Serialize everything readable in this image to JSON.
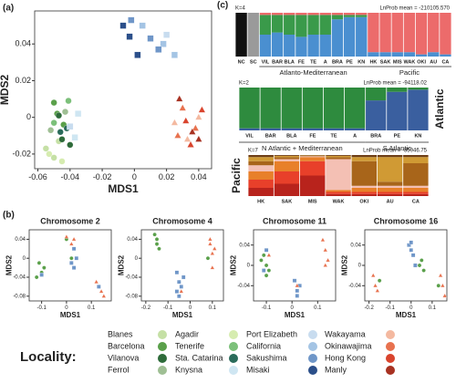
{
  "panel_labels": [
    "(a)",
    "(b)",
    "(c)"
  ],
  "legend_title": "Locality:",
  "chart_data": [
    {
      "type": "scatter",
      "xlabel": "MDS1",
      "ylabel": "MDS2",
      "xlim": [
        -0.062,
        0.048
      ],
      "ylim": [
        -0.028,
        0.058
      ],
      "xticks": [
        -0.06,
        -0.04,
        -0.02,
        0,
        0.02,
        0.04
      ],
      "yticks": [
        -0.02,
        0,
        0.02,
        0.04
      ],
      "series": [
        {
          "name": "Blanes",
          "color": "#c5e0a5",
          "marker": "circle",
          "x": [
            -0.055,
            -0.05,
            -0.047
          ],
          "values": [
            -0.017,
            -0.022,
            -0.013
          ]
        },
        {
          "name": "Barcelona",
          "color": "#5aa04a",
          "marker": "circle",
          "x": [
            -0.048,
            -0.044,
            -0.05
          ],
          "values": [
            0.002,
            -0.004,
            0.008
          ]
        },
        {
          "name": "Vilanova",
          "color": "#2e6b3a",
          "marker": "circle",
          "x": [
            -0.045,
            -0.04,
            -0.047
          ],
          "values": [
            -0.012,
            -0.015,
            0.001
          ]
        },
        {
          "name": "Ferrol",
          "color": "#9fbf94",
          "marker": "circle",
          "x": [
            -0.052,
            -0.043
          ],
          "values": [
            -0.007,
            0.003
          ]
        },
        {
          "name": "Agadir",
          "color": "#d6ecb0",
          "marker": "circle",
          "x": [
            -0.053,
            -0.045
          ],
          "values": [
            -0.02,
            -0.024
          ]
        },
        {
          "name": "Tenerife",
          "color": "#7cc07a",
          "marker": "circle",
          "x": [
            -0.05,
            -0.041
          ],
          "values": [
            -0.003,
            0.009
          ]
        },
        {
          "name": "Sta. Catarina",
          "color": "#2a6b5a",
          "marker": "circle",
          "x": [
            -0.046,
            -0.042
          ],
          "values": [
            -0.008,
            -0.006
          ]
        },
        {
          "name": "Knysna",
          "color": "#cfe6f2",
          "marker": "square",
          "x": [
            -0.037,
            -0.035
          ],
          "values": [
            -0.011,
            0.002
          ]
        },
        {
          "name": "Port Elizabeth",
          "color": "#c8dcef",
          "marker": "square",
          "x": [
            -0.04,
            0.02
          ],
          "values": [
            -0.005,
            0.045
          ]
        },
        {
          "name": "California",
          "color": "#a4c4e4",
          "marker": "square",
          "x": [
            0.005,
            0.018,
            0.025
          ],
          "values": [
            0.05,
            0.04,
            0.034
          ]
        },
        {
          "name": "Sakushima",
          "color": "#6f96c8",
          "marker": "square",
          "x": [
            -0.002,
            0.01,
            0.015
          ],
          "values": [
            0.053,
            0.043,
            0.037
          ]
        },
        {
          "name": "Misaki",
          "color": "#2b4f8a",
          "marker": "square",
          "x": [
            -0.007,
            0.002,
            -0.003
          ],
          "values": [
            0.05,
            0.034,
            0.044
          ]
        },
        {
          "name": "Wakayama",
          "color": "#f4b9a0",
          "marker": "triangle",
          "x": [
            0.025,
            0.04,
            0.033
          ],
          "values": [
            -0.003,
            0.0,
            -0.012
          ]
        },
        {
          "name": "Okinawajima",
          "color": "#e8724f",
          "marker": "triangle",
          "x": [
            0.03,
            0.038,
            0.027
          ],
          "values": [
            0.005,
            -0.006,
            -0.01
          ]
        },
        {
          "name": "Hong Kong",
          "color": "#d9442d",
          "marker": "triangle",
          "x": [
            0.032,
            0.035,
            0.042
          ],
          "values": [
            -0.002,
            -0.015,
            0.004
          ]
        },
        {
          "name": "Manly",
          "color": "#a83222",
          "marker": "triangle",
          "x": [
            0.028,
            0.036,
            0.04
          ],
          "values": [
            0.01,
            -0.008,
            -0.012
          ]
        }
      ]
    },
    {
      "type": "scatter",
      "title": "Chromosome 2",
      "xlabel": "MDS1",
      "ylabel": "MDS2",
      "xlim": [
        -0.15,
        0.18
      ],
      "ylim": [
        -0.09,
        0.06
      ],
      "xticks": [
        -0.1,
        0,
        0.1
      ],
      "yticks": [
        -0.08,
        -0.04,
        0,
        0.04
      ],
      "series": [
        {
          "color": "#5aa04a",
          "marker": "circle",
          "x": [
            -0.11,
            -0.1,
            -0.09,
            -0.12,
            0.0,
            0.02
          ],
          "values": [
            -0.01,
            -0.03,
            -0.02,
            -0.04,
            0.04,
            0.0
          ]
        },
        {
          "color": "#6f96c8",
          "marker": "square",
          "x": [
            0.03,
            0.02,
            0.04,
            0.03,
            -0.1,
            0.13
          ],
          "values": [
            0.02,
            -0.01,
            0.0,
            -0.02,
            -0.035,
            -0.06
          ]
        },
        {
          "color": "#e8724f",
          "marker": "triangle",
          "x": [
            0.0,
            0.02,
            0.03,
            0.12,
            0.14,
            0.15
          ],
          "values": [
            0.045,
            0.03,
            0.04,
            -0.05,
            -0.07,
            -0.08
          ]
        }
      ]
    },
    {
      "type": "scatter",
      "title": "Chromosome 4",
      "xlabel": "MDS1",
      "ylabel": "MDS2",
      "xlim": [
        -0.22,
        0.15
      ],
      "ylim": [
        -0.09,
        0.06
      ],
      "xticks": [
        -0.2,
        -0.1,
        0,
        0.1
      ],
      "yticks": [
        -0.08,
        -0.04,
        0,
        0.04
      ],
      "series": [
        {
          "color": "#5aa04a",
          "marker": "circle",
          "x": [
            -0.16,
            -0.15,
            -0.14,
            -0.15,
            -0.05,
            0.08
          ],
          "values": [
            0.05,
            0.04,
            0.02,
            0.03,
            -0.05,
            0.0
          ]
        },
        {
          "color": "#6f96c8",
          "marker": "square",
          "x": [
            -0.06,
            -0.05,
            -0.04,
            -0.05,
            -0.03,
            -0.06
          ],
          "values": [
            -0.03,
            -0.05,
            -0.06,
            -0.08,
            -0.04,
            -0.07
          ]
        },
        {
          "color": "#e8724f",
          "marker": "triangle",
          "x": [
            0.09,
            0.1,
            0.11,
            0.1,
            -0.04,
            0.09
          ],
          "values": [
            0.03,
            0.01,
            0.02,
            -0.02,
            -0.07,
            0.04
          ]
        }
      ]
    },
    {
      "type": "scatter",
      "title": "Chromosome 11",
      "xlabel": "MDS1",
      "ylabel": "MDS2",
      "xlim": [
        -0.15,
        0.17
      ],
      "ylim": [
        -0.07,
        0.07
      ],
      "xticks": [
        -0.1,
        0,
        0.1
      ],
      "yticks": [
        -0.04,
        0,
        0.04
      ],
      "series": [
        {
          "color": "#5aa04a",
          "marker": "circle",
          "x": [
            -0.11,
            -0.1,
            -0.09,
            -0.12,
            -0.1
          ],
          "values": [
            0.02,
            0.0,
            -0.01,
            0.01,
            -0.02
          ]
        },
        {
          "color": "#6f96c8",
          "marker": "square",
          "x": [
            0.01,
            0.02,
            0.03,
            0.02,
            -0.1,
            -0.11
          ],
          "values": [
            -0.03,
            -0.05,
            -0.04,
            -0.06,
            0.03,
            -0.01
          ]
        },
        {
          "color": "#e8724f",
          "marker": "triangle",
          "x": [
            0.12,
            0.13,
            0.14,
            0.13,
            -0.09,
            0.02
          ],
          "values": [
            0.05,
            0.03,
            0.01,
            0.0,
            0.02,
            -0.04
          ]
        }
      ]
    },
    {
      "type": "scatter",
      "title": "Chromosome 16",
      "xlabel": "MDS1",
      "ylabel": "MDS2",
      "xlim": [
        -0.22,
        0.17
      ],
      "ylim": [
        -0.07,
        0.07
      ],
      "xticks": [
        -0.2,
        -0.1,
        0,
        0.1
      ],
      "yticks": [
        -0.04,
        0,
        0.04
      ],
      "series": [
        {
          "color": "#5aa04a",
          "marker": "circle",
          "x": [
            0.04,
            0.05,
            0.06,
            -0.15,
            0.13
          ],
          "values": [
            0.0,
            0.01,
            -0.01,
            -0.03,
            -0.04
          ]
        },
        {
          "color": "#6f96c8",
          "marker": "square",
          "x": [
            -0.01,
            0.0,
            0.01,
            0.02,
            0.0
          ],
          "values": [
            0.04,
            0.03,
            0.02,
            0.0,
            0.045
          ]
        },
        {
          "color": "#e8724f",
          "marker": "triangle",
          "x": [
            -0.18,
            -0.17,
            -0.16,
            0.14,
            0.15,
            0.16
          ],
          "values": [
            -0.02,
            -0.04,
            -0.05,
            -0.02,
            -0.04,
            -0.06
          ]
        }
      ]
    },
    {
      "type": "stacked_bar",
      "k_label": "K=4",
      "ln_prob": "LnProb mean = -210105.570",
      "ylim": [
        0,
        1
      ],
      "categories": [
        "NC",
        "SC",
        "VIL",
        "BAR",
        "BLA",
        "FE",
        "TE",
        "A",
        "BRA",
        "PE",
        "KN",
        "HK",
        "SAK",
        "MIS",
        "WAK",
        "OKI",
        "AU",
        "CA"
      ],
      "groups": [
        "Atlanto-Mediterranean",
        "Pacific"
      ],
      "series": [
        {
          "color": "#111111",
          "values": [
            1,
            0,
            0,
            0,
            0,
            0,
            0,
            0,
            0,
            0,
            0,
            0,
            0,
            0,
            0,
            0,
            0,
            0
          ]
        },
        {
          "color": "#9a9a9a",
          "values": [
            0,
            1,
            0,
            0,
            0,
            0,
            0,
            0,
            0,
            0,
            0,
            0,
            0,
            0,
            0,
            0,
            0,
            0
          ]
        },
        {
          "color": "#4a8fd0",
          "values": [
            0,
            0,
            0.5,
            0.55,
            0.5,
            0.45,
            0.5,
            0.5,
            0.85,
            0.9,
            0.9,
            0.1,
            0.1,
            0.1,
            0.1,
            0.05,
            0.1,
            0.05
          ]
        },
        {
          "color": "#3a9a4a",
          "values": [
            0,
            0,
            0.45,
            0.4,
            0.45,
            0.5,
            0.45,
            0.45,
            0.1,
            0.05,
            0.05,
            0,
            0,
            0,
            0,
            0,
            0,
            0
          ]
        },
        {
          "color": "#ec6b6b",
          "values": [
            0,
            0,
            0.05,
            0.05,
            0.05,
            0.05,
            0.05,
            0.05,
            0.05,
            0.05,
            0.05,
            0.9,
            0.9,
            0.9,
            0.9,
            0.95,
            0.9,
            0.95
          ]
        }
      ]
    },
    {
      "type": "stacked_bar",
      "k_label": "K=2",
      "ln_prob": "LnProb mean = -94118.02",
      "ylim": [
        0,
        1
      ],
      "categories": [
        "VIL",
        "BAR",
        "BLA",
        "FE",
        "TE",
        "A",
        "BRA",
        "PE",
        "KN"
      ],
      "groups": [
        "N Atlantic + Mediterranean",
        "S Atlantic"
      ],
      "side_label": "Atlantic",
      "series": [
        {
          "color": "#3a5f9f",
          "values": [
            0.05,
            0.05,
            0.05,
            0.05,
            0.05,
            0.05,
            0.7,
            0.9,
            0.95
          ]
        },
        {
          "color": "#2e8b3e",
          "values": [
            0.95,
            0.95,
            0.95,
            0.95,
            0.95,
            0.95,
            0.3,
            0.1,
            0.05
          ]
        }
      ]
    },
    {
      "type": "stacked_bar",
      "k_label": "K=7",
      "ln_prob": "LnProb mean = -85946.75",
      "ylim": [
        0,
        1
      ],
      "categories": [
        "HK",
        "SAK",
        "MIS",
        "WAK",
        "OKI",
        "AU",
        "CA"
      ],
      "side_label": "Pacific",
      "series": [
        {
          "color": "#b8231c",
          "values": [
            0.2,
            0.3,
            0.5,
            0.05,
            0.05,
            0.05,
            0.05
          ]
        },
        {
          "color": "#e8402a",
          "values": [
            0.2,
            0.3,
            0.35,
            0.05,
            0.05,
            0.05,
            0.05
          ]
        },
        {
          "color": "#e8802a",
          "values": [
            0.2,
            0.25,
            0.1,
            0.05,
            0.1,
            0.1,
            0.1
          ]
        },
        {
          "color": "#f4c0b4",
          "values": [
            0.15,
            0.05,
            0.02,
            0.75,
            0.05,
            0.05,
            0.05
          ]
        },
        {
          "color": "#a8651a",
          "values": [
            0.1,
            0.05,
            0.01,
            0.05,
            0.6,
            0.1,
            0.55
          ]
        },
        {
          "color": "#d09a34",
          "values": [
            0.1,
            0.03,
            0.01,
            0.03,
            0.1,
            0.6,
            0.15
          ]
        },
        {
          "color": "#6e3e16",
          "values": [
            0.05,
            0.02,
            0.01,
            0.02,
            0.05,
            0.05,
            0.05
          ]
        }
      ]
    }
  ]
}
